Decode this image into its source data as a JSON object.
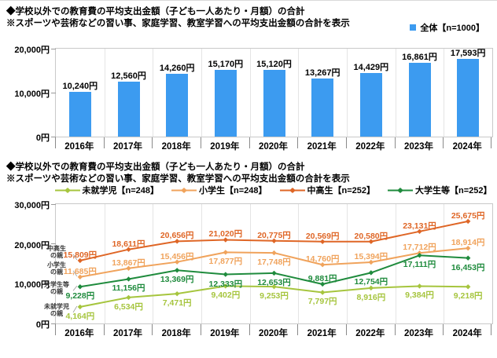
{
  "chart_data": [
    {
      "type": "bar",
      "title": "◆学校以外での教育費の平均支出金額（子ども一人あたり・月額）の合計",
      "subtitle": "※スポーツや芸術などの習い事、家庭学習、教室学習への平均支出金額の合計を表示",
      "legend": [
        {
          "label": "全体【n=1000】",
          "color": "#3c9bf0"
        }
      ],
      "legend_position": "top-right",
      "categories": [
        "2016年",
        "2017年",
        "2018年",
        "2019年",
        "2020年",
        "2021年",
        "2022年",
        "2023年",
        "2024年"
      ],
      "values": [
        10240,
        12560,
        14260,
        15170,
        15120,
        13267,
        14429,
        16861,
        17593
      ],
      "value_labels": [
        "10,240円",
        "12,560円",
        "14,260円",
        "15,170円",
        "15,120円",
        "13,267円",
        "14,429円",
        "16,861円",
        "17,593円"
      ],
      "ylim": [
        0,
        20000
      ],
      "yticks": [
        {
          "value": 0,
          "label": "0円"
        },
        {
          "value": 10000,
          "label": "10,000円"
        },
        {
          "value": 20000,
          "label": "20,000円"
        }
      ],
      "grid": "category-separators-only",
      "bar_color": "#3c9bf0"
    },
    {
      "type": "line",
      "title": "◆学校以外での教育費の平均支出金額（子ども一人あたり・月額）の合計",
      "subtitle": "※スポーツや芸術などの習い事、家庭学習、教室学習への平均支出金額の合計を表示",
      "legend_position": "top-center",
      "categories": [
        "2016年",
        "2017年",
        "2018年",
        "2019年",
        "2020年",
        "2021年",
        "2022年",
        "2023年",
        "2024年"
      ],
      "ylim": [
        0,
        30000
      ],
      "yticks": [
        {
          "value": 0,
          "label": "0円"
        },
        {
          "value": 10000,
          "label": "10,000円"
        },
        {
          "value": 20000,
          "label": "20,000円"
        },
        {
          "value": 30000,
          "label": "30,000円"
        }
      ],
      "grid": "category-separators-only",
      "series": [
        {
          "name": "未就学児【n=248】",
          "color": "#a6c53e",
          "values": [
            4164,
            6534,
            7471,
            9402,
            9253,
            7797,
            8916,
            9384,
            9218
          ],
          "value_labels": [
            "4,164円",
            "6,534円",
            "7,471円",
            "9,402円",
            "9,253円",
            "7,797円",
            "8,916円",
            "9,384円",
            "9,218円"
          ],
          "label_side": [
            "below",
            "below",
            "below",
            "below",
            "below",
            "below",
            "below",
            "below",
            "below"
          ]
        },
        {
          "name": "小学生【n=248】",
          "color": "#f0a35c",
          "values": [
            11685,
            13867,
            15456,
            17877,
            17748,
            14760,
            15394,
            17712,
            18914
          ],
          "value_labels": [
            "11,685円",
            "13,867円",
            "15,456円",
            "17,877円",
            "17,748円",
            "14,760円",
            "15,394円",
            "17,712円",
            "18,914円"
          ],
          "label_side": [
            "above",
            "above",
            "above",
            "below",
            "below",
            "above",
            "above",
            "above",
            "above"
          ]
        },
        {
          "name": "中高生【n=252】",
          "color": "#df6626",
          "values": [
            15809,
            18611,
            20656,
            21020,
            20775,
            20569,
            20580,
            23131,
            25675
          ],
          "value_labels": [
            "15,809円",
            "18,611円",
            "20,656円",
            "21,020円",
            "20,775円",
            "20,569円",
            "20,580円",
            "23,131円",
            "25,675円"
          ],
          "label_side": [
            "above",
            "above",
            "above",
            "above",
            "above",
            "above",
            "above",
            "above",
            "above"
          ]
        },
        {
          "name": "大学生等【n=252】",
          "color": "#1f8b3d",
          "values": [
            9228,
            11156,
            13369,
            12333,
            12653,
            9881,
            12754,
            17111,
            16453
          ],
          "value_labels": [
            "9,228円",
            "11,156円",
            "13,369円",
            "12,333円",
            "12,653円",
            "9,881円",
            "12,754円",
            "17,111円",
            "16,453円"
          ],
          "label_side": [
            "below",
            "below",
            "below",
            "below",
            "below",
            "above",
            "below",
            "below",
            "below"
          ]
        }
      ],
      "annotations": [
        {
          "lines": [
            "中高生",
            "の親"
          ],
          "series_index": 2,
          "dy": -11
        },
        {
          "lines": [
            "小学生",
            "の親"
          ],
          "series_index": 1,
          "dy": -11
        },
        {
          "lines": [
            "大学生等",
            "の親"
          ],
          "series_index": 3,
          "dy": 2
        },
        {
          "lines": [
            "未就学児",
            "の親"
          ],
          "series_index": 0,
          "dy": 4
        }
      ]
    }
  ],
  "colors": {
    "grid": "#e4e4e4",
    "axis": "#c9c9c9",
    "tick": "#9a9a9a",
    "text": "#000000"
  }
}
